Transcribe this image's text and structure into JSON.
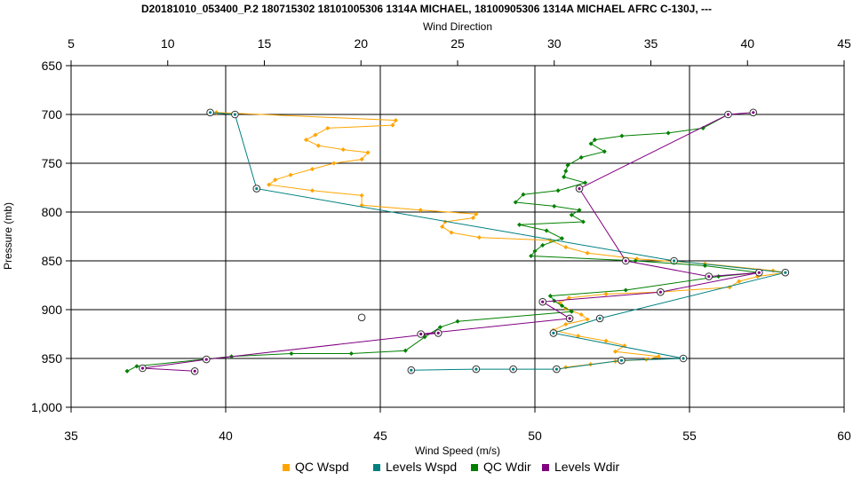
{
  "chart_data": {
    "type": "line",
    "title": "D20181010_053400_P.2 180715302 18101005306 1314A MICHAEL, 18100905306 1314A MICHAEL AFRC C-130J, ---",
    "xlabel_bottom": "Wind Speed (m/s)",
    "xlabel_top": "Wind Direction",
    "ylabel": "Pressure (mb)",
    "x_bottom": {
      "min": 35,
      "max": 60,
      "ticks": [
        "35",
        "40",
        "45",
        "50",
        "55",
        "60"
      ]
    },
    "x_top": {
      "min": 5,
      "max": 45,
      "ticks": [
        "5",
        "10",
        "15",
        "20",
        "25",
        "30",
        "35",
        "40",
        "45"
      ]
    },
    "y": {
      "min": 650,
      "max": 1000,
      "inverted": true,
      "ticks": [
        "650",
        "700",
        "750",
        "800",
        "850",
        "900",
        "950",
        "1,000"
      ]
    },
    "grid": true,
    "legend_position": "bottom",
    "colors": {
      "qc_wspd": "#FFA500",
      "levels_wspd": "#008080",
      "qc_wdir": "#008000",
      "levels_wdir": "#800080"
    },
    "series": [
      {
        "name": "QC Wspd",
        "axis": "bottom",
        "style": "line-markers",
        "points": [
          [
            39.7,
            698
          ],
          [
            45.5,
            706
          ],
          [
            45.4,
            711
          ],
          [
            43.3,
            714
          ],
          [
            42.9,
            721
          ],
          [
            42.6,
            726
          ],
          [
            43.0,
            732
          ],
          [
            43.8,
            736
          ],
          [
            44.6,
            739
          ],
          [
            44.4,
            746
          ],
          [
            43.5,
            750
          ],
          [
            42.8,
            756
          ],
          [
            42.1,
            762
          ],
          [
            41.6,
            767
          ],
          [
            41.4,
            772
          ],
          [
            42.8,
            778
          ],
          [
            44.4,
            783
          ],
          [
            44.4,
            793
          ],
          [
            46.3,
            798
          ],
          [
            48.1,
            802
          ],
          [
            48.0,
            806
          ],
          [
            47.1,
            810
          ],
          [
            47.0,
            815
          ],
          [
            47.3,
            821
          ],
          [
            48.2,
            826
          ],
          [
            50.5,
            829
          ],
          [
            51.0,
            836
          ],
          [
            51.7,
            842
          ],
          [
            53.3,
            848
          ],
          [
            55.5,
            853
          ],
          [
            57.7,
            860
          ],
          [
            58.1,
            862
          ],
          [
            57.2,
            866
          ],
          [
            56.6,
            871
          ],
          [
            56.3,
            877
          ],
          [
            54.0,
            882
          ],
          [
            52.3,
            884
          ],
          [
            51.1,
            888
          ],
          [
            50.8,
            893
          ],
          [
            51.0,
            899
          ],
          [
            51.5,
            905
          ],
          [
            51.7,
            910
          ],
          [
            51.0,
            915
          ],
          [
            50.6,
            921
          ],
          [
            51.4,
            927
          ],
          [
            52.3,
            932
          ],
          [
            52.9,
            937
          ],
          [
            52.6,
            943
          ],
          [
            54.0,
            948
          ],
          [
            53.6,
            951
          ],
          [
            52.6,
            953
          ],
          [
            51.8,
            956
          ],
          [
            51.0,
            959
          ],
          [
            50.7,
            962
          ]
        ]
      },
      {
        "name": "Levels Wspd",
        "axis": "bottom",
        "style": "line-circles",
        "points": [
          [
            39.5,
            698
          ],
          [
            40.3,
            700
          ],
          [
            41.0,
            776
          ],
          [
            54.5,
            850
          ],
          [
            58.1,
            862
          ],
          [
            52.1,
            909
          ],
          [
            50.6,
            924
          ],
          [
            54.8,
            950
          ],
          [
            52.8,
            952
          ],
          [
            50.7,
            961
          ],
          [
            49.3,
            961
          ],
          [
            48.1,
            961
          ],
          [
            46.0,
            962
          ]
        ]
      },
      {
        "name": "QC Wdir",
        "axis": "top",
        "style": "line-markers",
        "points": [
          [
            39.0,
            700
          ],
          [
            37.7,
            714
          ],
          [
            35.9,
            719
          ],
          [
            33.5,
            722
          ],
          [
            32.1,
            726
          ],
          [
            31.9,
            730
          ],
          [
            32.6,
            738
          ],
          [
            31.4,
            744
          ],
          [
            30.7,
            752
          ],
          [
            30.6,
            758
          ],
          [
            30.5,
            764
          ],
          [
            31.6,
            770
          ],
          [
            30.2,
            778
          ],
          [
            28.4,
            782
          ],
          [
            28.0,
            790
          ],
          [
            30.0,
            794
          ],
          [
            31.3,
            798
          ],
          [
            30.9,
            803
          ],
          [
            31.5,
            810
          ],
          [
            28.2,
            813
          ],
          [
            29.6,
            819
          ],
          [
            30.4,
            827
          ],
          [
            29.4,
            834
          ],
          [
            29.0,
            840
          ],
          [
            28.8,
            845
          ],
          [
            34.2,
            850
          ],
          [
            37.8,
            855
          ],
          [
            40.6,
            862
          ],
          [
            38.5,
            866
          ],
          [
            33.7,
            880
          ],
          [
            29.8,
            886
          ],
          [
            30.0,
            891
          ],
          [
            30.4,
            896
          ],
          [
            30.9,
            902
          ],
          [
            25.0,
            912
          ],
          [
            24.1,
            918
          ],
          [
            23.3,
            928
          ],
          [
            22.3,
            942
          ],
          [
            19.5,
            945
          ],
          [
            16.4,
            945
          ],
          [
            13.3,
            948
          ],
          [
            8.4,
            958
          ],
          [
            7.9,
            963
          ]
        ]
      },
      {
        "name": "Levels Wdir",
        "axis": "top",
        "style": "line-circles",
        "points": [
          [
            40.3,
            698
          ],
          [
            39.0,
            700
          ],
          [
            31.3,
            776
          ],
          [
            33.7,
            850
          ],
          [
            38.0,
            866
          ],
          [
            40.6,
            862
          ],
          [
            35.5,
            882
          ],
          [
            29.4,
            892
          ],
          [
            30.8,
            909
          ],
          [
            23.1,
            925
          ],
          [
            24.0,
            924
          ],
          [
            12.0,
            951
          ],
          [
            8.7,
            960
          ],
          [
            11.4,
            963
          ]
        ]
      }
    ],
    "extra_points": [
      {
        "axis": "bottom",
        "x": 44.4,
        "y": 908
      }
    ]
  }
}
